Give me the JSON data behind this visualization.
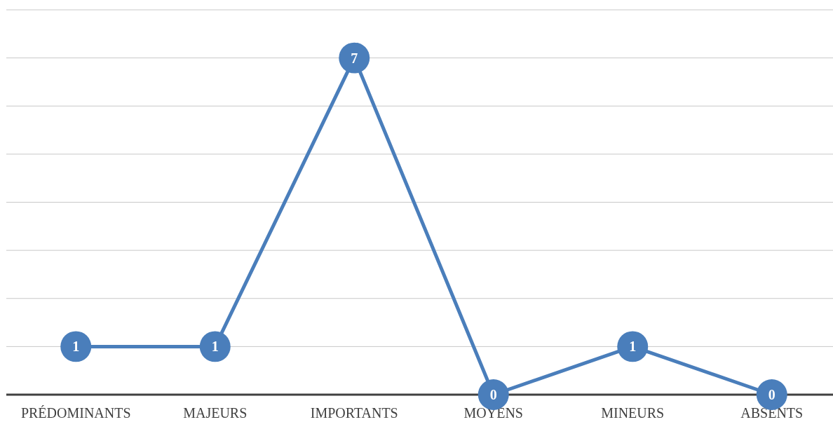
{
  "chart_data": {
    "type": "line",
    "categories": [
      "PRÉDOMINANTS",
      "MAJEURS",
      "IMPORTANTS",
      "MOYENS",
      "MINEURS",
      "ABSENTS"
    ],
    "series": [
      {
        "color": "#4a7ebb",
        "values": [
          1,
          1,
          7,
          0,
          1,
          0
        ]
      }
    ],
    "ylim": [
      0,
      8
    ],
    "yticks": [
      {
        "value": 0,
        "label": null
      },
      {
        "value": 1,
        "label": null
      },
      {
        "value": 2,
        "label": null
      },
      {
        "value": 3,
        "label": null
      },
      {
        "value": 4,
        "label": null
      },
      {
        "value": 5,
        "label": null
      },
      {
        "value": 6,
        "label": null
      },
      {
        "value": 7,
        "label": null
      },
      {
        "value": 8,
        "label": null
      }
    ],
    "grid": "y",
    "tick_labels": "x",
    "marker": "circle",
    "line_style": "solid",
    "data_labels": true
  }
}
